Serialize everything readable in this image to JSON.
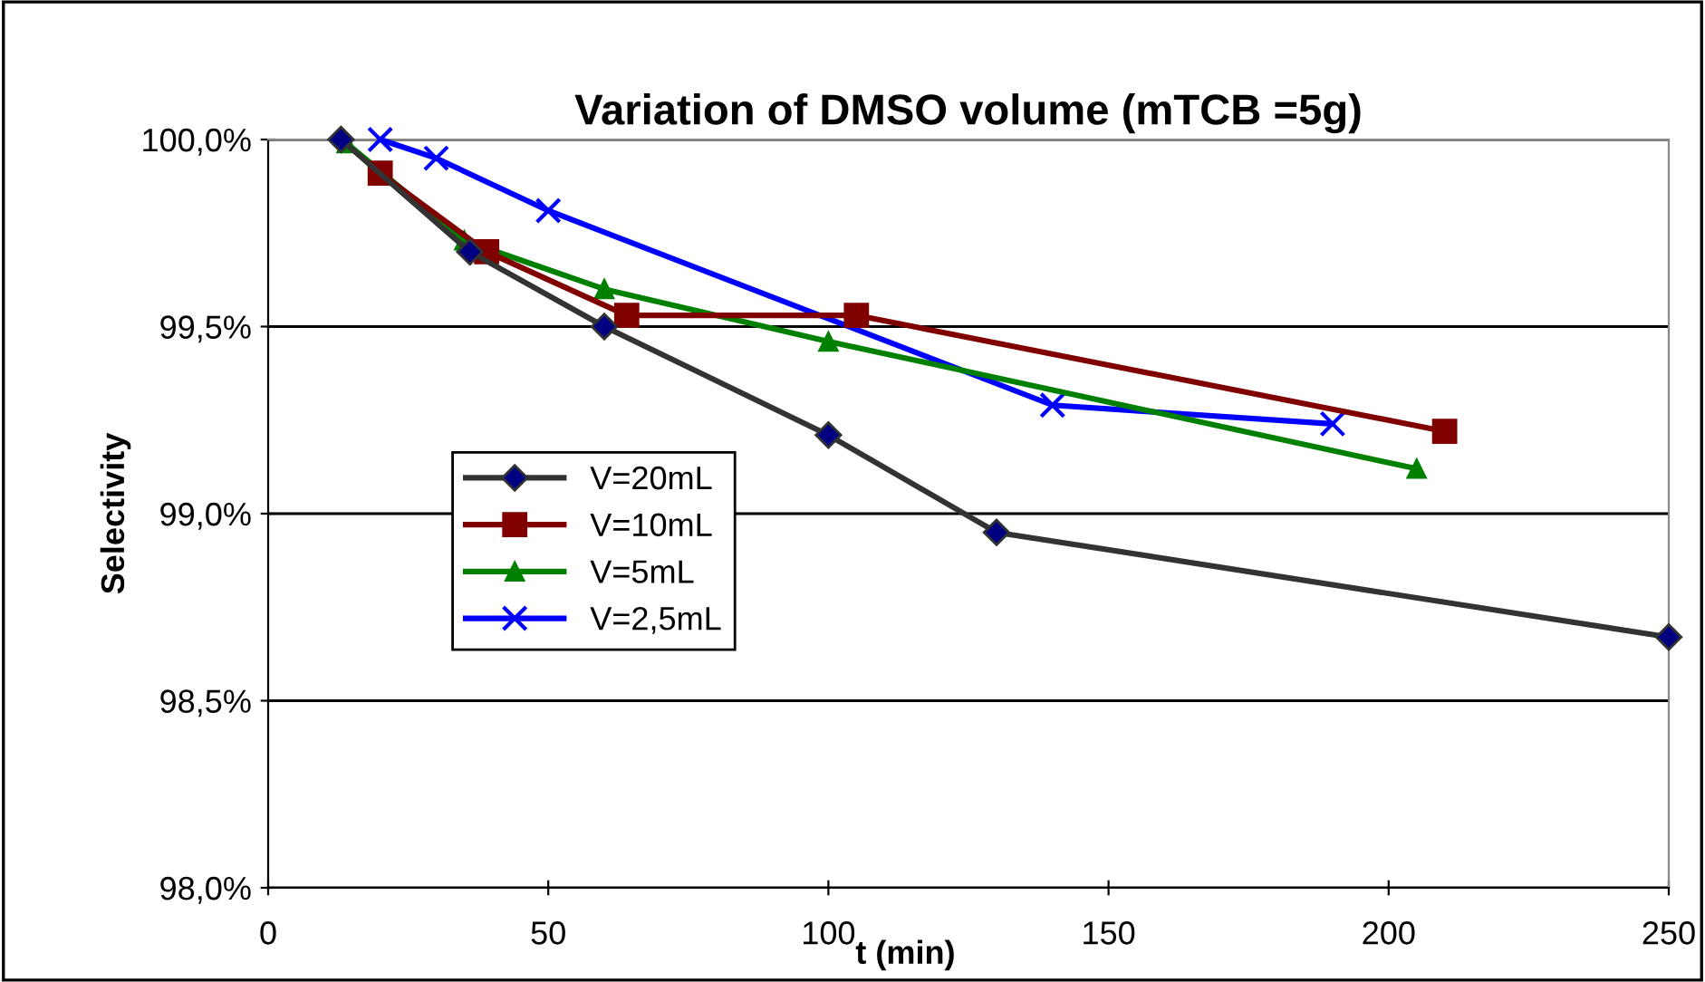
{
  "chart_data": {
    "type": "line",
    "title": "Variation of DMSO volume (mTCB =5g)",
    "xlabel": "t (min)",
    "ylabel": "Selectivity",
    "xlim": [
      0,
      250
    ],
    "xticks": [
      0,
      50,
      100,
      150,
      200,
      250
    ],
    "ylim": [
      98.0,
      100.0
    ],
    "yticks": [
      {
        "value": 98.0,
        "label": "98,0%"
      },
      {
        "value": 98.5,
        "label": "98,5%"
      },
      {
        "value": 99.0,
        "label": "99,0%"
      },
      {
        "value": 99.5,
        "label": "99,5%"
      },
      {
        "value": 100.0,
        "label": "100,0%"
      }
    ],
    "grid": "y",
    "legend": "left",
    "line_style": "solid",
    "series": [
      {
        "name": "V=20mL",
        "color": "#333333",
        "marker": "diamond",
        "x": [
          13,
          36,
          60,
          100,
          130,
          250
        ],
        "values": [
          100.0,
          99.7,
          99.5,
          99.21,
          98.95,
          98.67
        ]
      },
      {
        "name": "V=10mL",
        "color": "#800000",
        "marker": "square",
        "x": [
          20,
          39,
          64,
          105,
          210
        ],
        "values": [
          99.91,
          99.7,
          99.53,
          99.53,
          99.22
        ]
      },
      {
        "name": "V=5mL",
        "color": "#008000",
        "marker": "triangle",
        "x": [
          14,
          35,
          60,
          100,
          205
        ],
        "values": [
          99.99,
          99.73,
          99.6,
          99.46,
          99.12
        ]
      },
      {
        "name": "V=2,5mL",
        "color": "#0000ff",
        "marker": "cross",
        "x": [
          20,
          30,
          50,
          140,
          190
        ],
        "values": [
          100.0,
          99.95,
          99.81,
          99.29,
          99.24
        ]
      }
    ]
  }
}
